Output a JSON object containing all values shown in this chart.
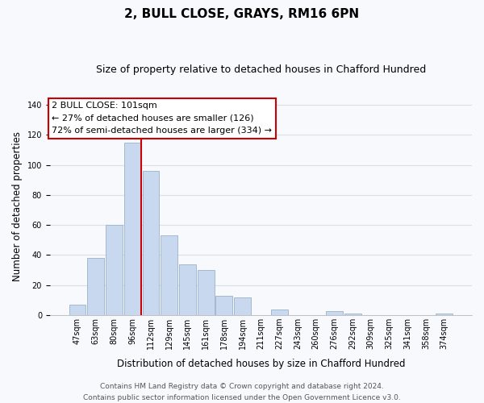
{
  "title": "2, BULL CLOSE, GRAYS, RM16 6PN",
  "subtitle": "Size of property relative to detached houses in Chafford Hundred",
  "xlabel": "Distribution of detached houses by size in Chafford Hundred",
  "ylabel": "Number of detached properties",
  "bar_labels": [
    "47sqm",
    "63sqm",
    "80sqm",
    "96sqm",
    "112sqm",
    "129sqm",
    "145sqm",
    "161sqm",
    "178sqm",
    "194sqm",
    "211sqm",
    "227sqm",
    "243sqm",
    "260sqm",
    "276sqm",
    "292sqm",
    "309sqm",
    "325sqm",
    "341sqm",
    "358sqm",
    "374sqm"
  ],
  "bar_values": [
    7,
    38,
    60,
    115,
    96,
    53,
    34,
    30,
    13,
    12,
    0,
    4,
    0,
    0,
    3,
    1,
    0,
    0,
    0,
    0,
    1
  ],
  "bar_color": "#c8d8ee",
  "bar_edge_color": "#9ab0cc",
  "vline_x_idx": 3,
  "vline_color": "#cc0000",
  "ylim": [
    0,
    145
  ],
  "yticks": [
    0,
    20,
    40,
    60,
    80,
    100,
    120,
    140
  ],
  "annotation_title": "2 BULL CLOSE: 101sqm",
  "annotation_line1": "← 27% of detached houses are smaller (126)",
  "annotation_line2": "72% of semi-detached houses are larger (334) →",
  "annotation_box_facecolor": "#ffffff",
  "annotation_box_edgecolor": "#cc0000",
  "footer_line1": "Contains HM Land Registry data © Crown copyright and database right 2024.",
  "footer_line2": "Contains public sector information licensed under the Open Government Licence v3.0.",
  "bg_color": "#f7f9fd",
  "plot_bg_color": "#f7f9fd",
  "grid_color": "#d8e0ea",
  "title_fontsize": 11,
  "subtitle_fontsize": 9,
  "ylabel_fontsize": 8.5,
  "xlabel_fontsize": 8.5,
  "tick_fontsize": 7,
  "ann_fontsize": 8,
  "footer_fontsize": 6.5
}
